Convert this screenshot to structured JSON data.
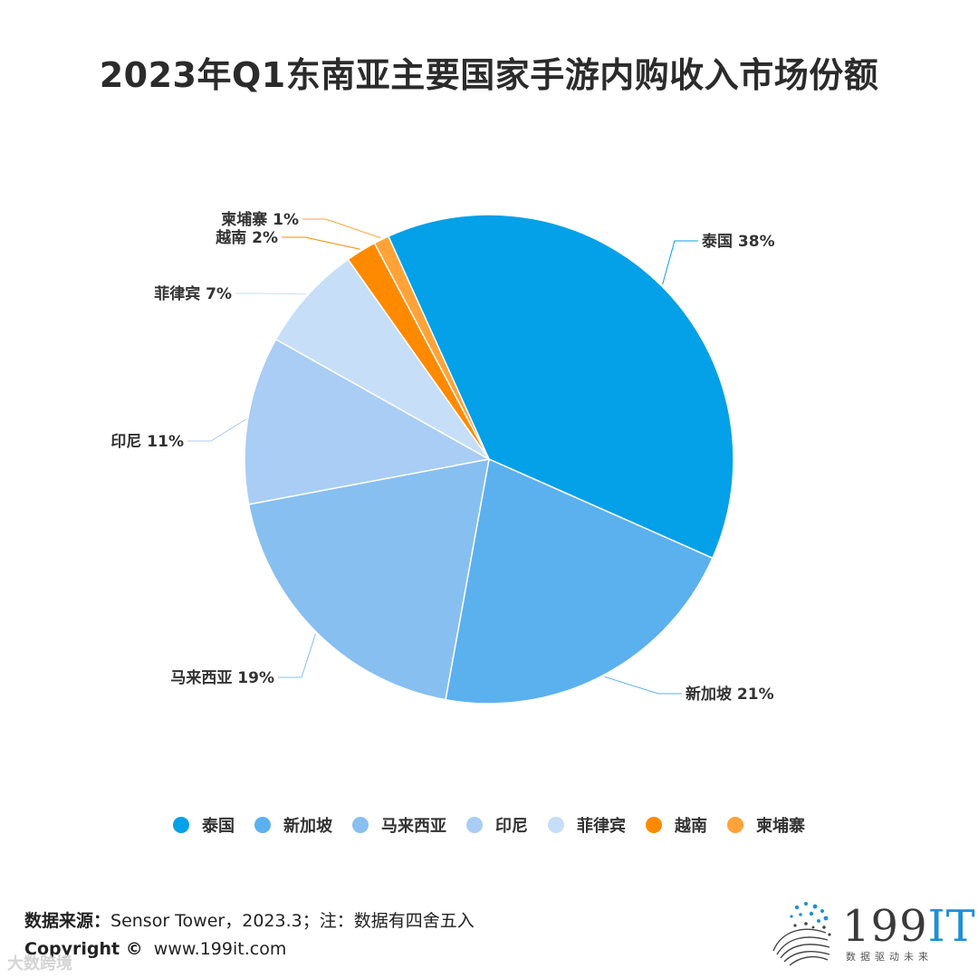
{
  "title": "2023年Q1东南亚主要国家手游内购收入市场份额",
  "chart_data": {
    "type": "pie",
    "title": "2023年Q1东南亚主要国家手游内购收入市场份额",
    "slices": [
      {
        "label": "泰国",
        "value": 38,
        "color": "#04A0E8"
      },
      {
        "label": "新加坡",
        "value": 21,
        "color": "#5BB0EE"
      },
      {
        "label": "马来西亚",
        "value": 19,
        "color": "#87BFF0"
      },
      {
        "label": "印尼",
        "value": 11,
        "color": "#A9CDF4"
      },
      {
        "label": "菲律宾",
        "value": 7,
        "color": "#C6DEF7"
      },
      {
        "label": "越南",
        "value": 2,
        "color": "#FF8A00"
      },
      {
        "label": "柬埔寨",
        "value": 1,
        "color": "#FFA339"
      }
    ],
    "legend_position": "bottom",
    "label_suffix": "%"
  },
  "footer": {
    "source_label": "数据来源：",
    "source_text": "Sensor Tower，2023.3；注：数据有四舍五入",
    "copyright_label": "Copyright ©",
    "copyright_text": "www.199it.com"
  },
  "logo": {
    "text_main": "199",
    "text_accent": "IT",
    "subtitle": "数据驱动未来"
  },
  "watermark": "大数跨境"
}
